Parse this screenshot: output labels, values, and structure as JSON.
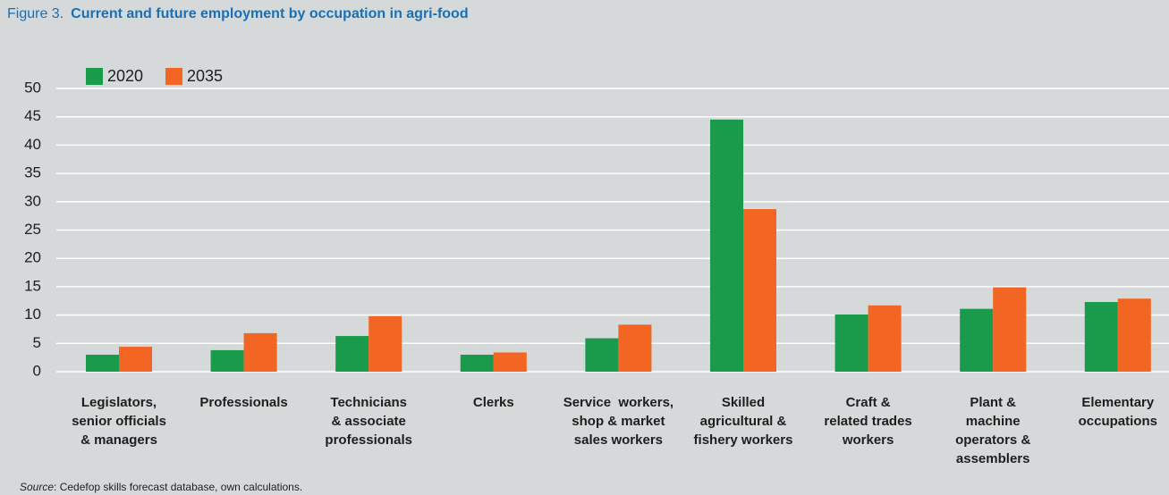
{
  "chart_data": {
    "type": "bar",
    "figure_label": "Figure 3.",
    "title": "Current and future employment by occupation in agri-food",
    "source_label": "Source",
    "source": ": Cedefop skills forecast database, own calculations.",
    "categories": [
      "Legislators,\nsenior officials\n& managers",
      "Professionals",
      "Technicians\n& associate\nprofessionals",
      "Clerks",
      "Service  workers,\nshop & market\nsales workers",
      "Skilled\nagricultural &\nfishery workers",
      "Craft &\nrelated trades\nworkers",
      "Plant &\nmachine\noperators &\nassemblers",
      "Elementary\noccupations"
    ],
    "series": [
      {
        "name": "2020",
        "color": "#1a9a4b",
        "values": [
          3.0,
          3.8,
          6.3,
          3.0,
          5.9,
          44.5,
          10.1,
          11.1,
          12.3
        ]
      },
      {
        "name": "2035",
        "color": "#f26522",
        "values": [
          4.4,
          6.8,
          9.8,
          3.4,
          8.3,
          28.7,
          11.7,
          14.9,
          12.9
        ]
      }
    ],
    "ylim": [
      0,
      50
    ],
    "yticks": [
      0,
      5,
      10,
      15,
      20,
      25,
      30,
      35,
      40,
      45,
      50
    ],
    "grid": true,
    "legend": "top-left"
  }
}
